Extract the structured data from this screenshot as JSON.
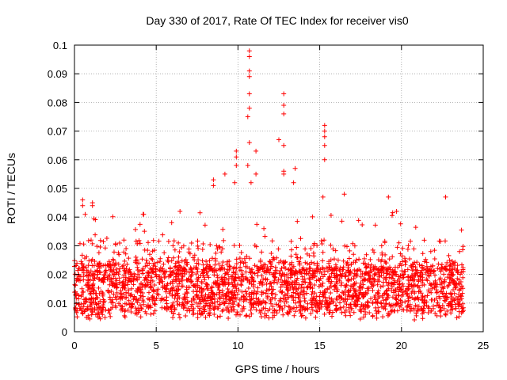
{
  "chart_data": {
    "type": "scatter",
    "title": "Day 330 of 2017, Rate Of TEC Index for receiver vis0",
    "xlabel": "GPS time / hours",
    "ylabel": "ROTI / TECUs",
    "xlim": [
      0,
      25
    ],
    "ylim": [
      0,
      0.1
    ],
    "xticks": [
      0,
      5,
      10,
      15,
      20,
      25
    ],
    "xtick_labels": [
      "0",
      "5",
      "10",
      "15",
      "20",
      "25"
    ],
    "yticks": [
      0,
      0.01,
      0.02,
      0.03,
      0.04,
      0.05,
      0.06,
      0.07,
      0.08,
      0.09,
      0.1
    ],
    "ytick_labels": [
      "0",
      "0.01",
      "0.02",
      "0.03",
      "0.04",
      "0.05",
      "0.06",
      "0.07",
      "0.08",
      "0.09",
      "0.1"
    ],
    "grid": true,
    "marker": "+",
    "color": "#ff0000",
    "series": [
      {
        "name": "ROTI",
        "x_range": [
          0,
          23.8
        ],
        "baseline_band": [
          0.005,
          0.025
        ],
        "notable_points": [
          {
            "x": 0.5,
            "y": 0.046
          },
          {
            "x": 0.5,
            "y": 0.044
          },
          {
            "x": 1.1,
            "y": 0.045
          },
          {
            "x": 1.1,
            "y": 0.044
          },
          {
            "x": 4.2,
            "y": 0.041
          },
          {
            "x": 8.5,
            "y": 0.053
          },
          {
            "x": 8.5,
            "y": 0.051
          },
          {
            "x": 9.2,
            "y": 0.055
          },
          {
            "x": 9.9,
            "y": 0.063
          },
          {
            "x": 9.9,
            "y": 0.061
          },
          {
            "x": 9.9,
            "y": 0.058
          },
          {
            "x": 9.8,
            "y": 0.052
          },
          {
            "x": 10.7,
            "y": 0.098
          },
          {
            "x": 10.7,
            "y": 0.096
          },
          {
            "x": 10.7,
            "y": 0.091
          },
          {
            "x": 10.7,
            "y": 0.089
          },
          {
            "x": 10.7,
            "y": 0.083
          },
          {
            "x": 10.7,
            "y": 0.078
          },
          {
            "x": 10.6,
            "y": 0.075
          },
          {
            "x": 10.7,
            "y": 0.066
          },
          {
            "x": 10.6,
            "y": 0.058
          },
          {
            "x": 10.8,
            "y": 0.052
          },
          {
            "x": 11.1,
            "y": 0.063
          },
          {
            "x": 11.1,
            "y": 0.055
          },
          {
            "x": 12.5,
            "y": 0.067
          },
          {
            "x": 12.8,
            "y": 0.083
          },
          {
            "x": 12.8,
            "y": 0.079
          },
          {
            "x": 12.8,
            "y": 0.076
          },
          {
            "x": 12.8,
            "y": 0.065
          },
          {
            "x": 12.8,
            "y": 0.056
          },
          {
            "x": 12.8,
            "y": 0.055
          },
          {
            "x": 13.5,
            "y": 0.057
          },
          {
            "x": 13.4,
            "y": 0.052
          },
          {
            "x": 15.3,
            "y": 0.072
          },
          {
            "x": 15.3,
            "y": 0.07
          },
          {
            "x": 15.3,
            "y": 0.068
          },
          {
            "x": 15.3,
            "y": 0.065
          },
          {
            "x": 15.3,
            "y": 0.06
          },
          {
            "x": 15.2,
            "y": 0.047
          },
          {
            "x": 16.5,
            "y": 0.048
          },
          {
            "x": 19.2,
            "y": 0.047
          },
          {
            "x": 19.7,
            "y": 0.042
          },
          {
            "x": 22.7,
            "y": 0.047
          }
        ]
      }
    ]
  }
}
